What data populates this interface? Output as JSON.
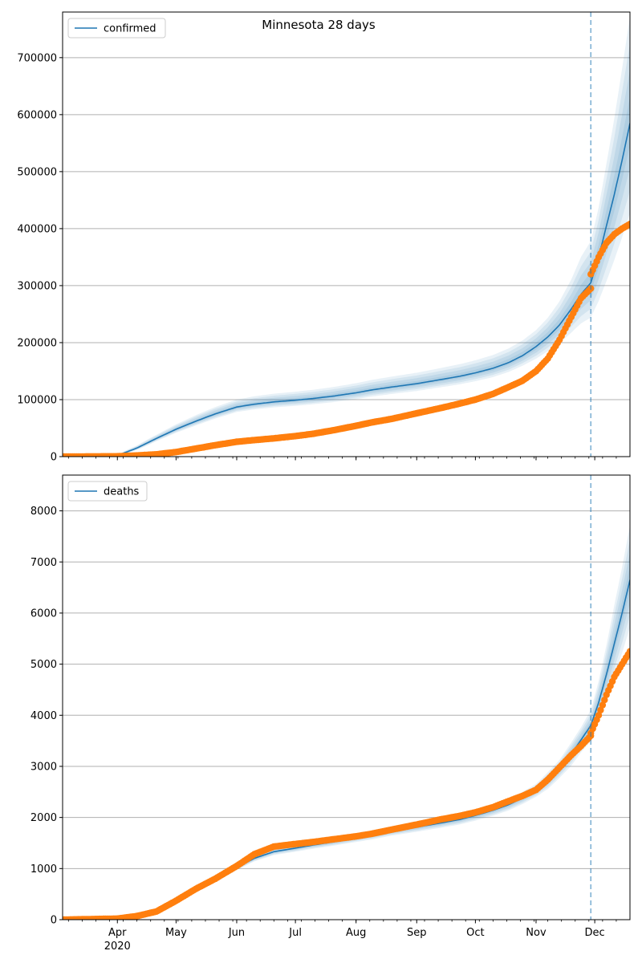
{
  "figure": {
    "title": "Minnesota 28 days"
  },
  "colors": {
    "model_line": "#1f77b4",
    "band": "#1f77b4",
    "observed": "#ff7f0e",
    "vline": "#1f77b4",
    "grid": "#b0b0b0"
  },
  "x_axis": {
    "month_ticks": [
      {
        "label": "Apr",
        "day": 20
      },
      {
        "label": "May",
        "day": 50
      },
      {
        "label": "Jun",
        "day": 81
      },
      {
        "label": "Jul",
        "day": 111
      },
      {
        "label": "Aug",
        "day": 142
      },
      {
        "label": "Sep",
        "day": 173
      },
      {
        "label": "Oct",
        "day": 203
      },
      {
        "label": "Nov",
        "day": 234
      },
      {
        "label": "Dec",
        "day": 264
      }
    ],
    "year_label": "2020",
    "range_days": [
      -8,
      282
    ],
    "forecast_start_day": 262
  },
  "chart_data": [
    {
      "type": "line",
      "legend": "confirmed",
      "legend_position": "upper-left",
      "grid": "horizontal",
      "ylim": [
        0,
        780000
      ],
      "yticks": [
        0,
        100000,
        200000,
        300000,
        400000,
        500000,
        600000,
        700000
      ],
      "ytick_labels": [
        "0",
        "100000",
        "200000",
        "300000",
        "400000",
        "500000",
        "600000",
        "700000"
      ],
      "model": {
        "days": [
          -8,
          20,
          30,
          40,
          50,
          60,
          70,
          81,
          90,
          100,
          111,
          120,
          130,
          142,
          150,
          160,
          173,
          185,
          195,
          203,
          212,
          220,
          227,
          234,
          240,
          246,
          252,
          257,
          262,
          266,
          270,
          274,
          278,
          282
        ],
        "values": [
          0,
          2000,
          15000,
          32000,
          48000,
          62000,
          75000,
          87000,
          92000,
          96000,
          99000,
          102000,
          106000,
          112000,
          117000,
          122000,
          128000,
          135000,
          141000,
          147000,
          155000,
          165000,
          177000,
          193000,
          210000,
          231000,
          259000,
          285000,
          305000,
          350000,
          405000,
          460000,
          520000,
          585000
        ],
        "band_upper_fraction": [
          0.0,
          0.5,
          0.3,
          0.2,
          0.18,
          0.17,
          0.16,
          0.15,
          0.15,
          0.15,
          0.15,
          0.15,
          0.15,
          0.15,
          0.15,
          0.15,
          0.15,
          0.15,
          0.15,
          0.15,
          0.15,
          0.15,
          0.15,
          0.15,
          0.16,
          0.18,
          0.2,
          0.23,
          0.24,
          0.25,
          0.27,
          0.29,
          0.31,
          0.32
        ],
        "band_lower_fraction": [
          0.0,
          0.4,
          0.22,
          0.15,
          0.13,
          0.12,
          0.11,
          0.1,
          0.1,
          0.1,
          0.1,
          0.1,
          0.1,
          0.1,
          0.1,
          0.1,
          0.1,
          0.1,
          0.1,
          0.1,
          0.1,
          0.1,
          0.1,
          0.11,
          0.12,
          0.14,
          0.16,
          0.18,
          0.2,
          0.22,
          0.24,
          0.25,
          0.26,
          0.27
        ]
      },
      "observed": {
        "days": [
          -8,
          20,
          30,
          40,
          50,
          60,
          70,
          81,
          90,
          100,
          111,
          120,
          130,
          142,
          150,
          160,
          173,
          185,
          195,
          203,
          212,
          220,
          227,
          234,
          240,
          246,
          252,
          257,
          262
        ],
        "values": [
          0,
          500,
          2000,
          4000,
          8000,
          14000,
          20000,
          26000,
          29000,
          32000,
          36000,
          40000,
          46000,
          54000,
          60000,
          66000,
          76000,
          85000,
          93000,
          100000,
          110000,
          122000,
          133000,
          150000,
          172000,
          205000,
          245000,
          278000,
          295000
        ],
        "forecast_days": [
          262,
          266,
          270,
          274,
          278,
          282
        ],
        "forecast_values": [
          320000,
          350000,
          375000,
          390000,
          400000,
          408000
        ]
      }
    },
    {
      "type": "line",
      "legend": "deaths",
      "legend_position": "upper-left",
      "grid": "horizontal",
      "ylim": [
        0,
        8700
      ],
      "yticks": [
        0,
        1000,
        2000,
        3000,
        4000,
        5000,
        6000,
        7000,
        8000
      ],
      "ytick_labels": [
        "0",
        "1000",
        "2000",
        "3000",
        "4000",
        "5000",
        "6000",
        "7000",
        "8000"
      ],
      "model": {
        "days": [
          -8,
          20,
          30,
          40,
          50,
          60,
          70,
          81,
          90,
          100,
          111,
          120,
          130,
          142,
          150,
          160,
          173,
          185,
          195,
          203,
          212,
          220,
          227,
          234,
          240,
          246,
          252,
          257,
          262,
          266,
          270,
          274,
          278,
          282
        ],
        "values": [
          0,
          20,
          60,
          150,
          350,
          570,
          780,
          1020,
          1200,
          1330,
          1400,
          1460,
          1520,
          1600,
          1650,
          1730,
          1810,
          1890,
          1960,
          2040,
          2140,
          2250,
          2380,
          2530,
          2720,
          2950,
          3240,
          3520,
          3800,
          4250,
          4800,
          5400,
          6000,
          6650
        ],
        "band_upper_fraction": [
          0.0,
          0.2,
          0.15,
          0.1,
          0.08,
          0.07,
          0.06,
          0.05,
          0.05,
          0.05,
          0.05,
          0.05,
          0.05,
          0.05,
          0.05,
          0.05,
          0.05,
          0.05,
          0.05,
          0.05,
          0.05,
          0.05,
          0.05,
          0.05,
          0.06,
          0.06,
          0.07,
          0.07,
          0.08,
          0.1,
          0.12,
          0.14,
          0.15,
          0.16
        ],
        "band_lower_fraction": [
          0.0,
          0.2,
          0.15,
          0.1,
          0.08,
          0.07,
          0.06,
          0.05,
          0.05,
          0.05,
          0.05,
          0.05,
          0.05,
          0.05,
          0.05,
          0.05,
          0.05,
          0.05,
          0.05,
          0.05,
          0.05,
          0.05,
          0.05,
          0.05,
          0.06,
          0.06,
          0.07,
          0.07,
          0.08,
          0.09,
          0.11,
          0.12,
          0.13,
          0.14
        ]
      },
      "observed": {
        "days": [
          -8,
          20,
          30,
          40,
          50,
          60,
          70,
          81,
          90,
          100,
          111,
          120,
          130,
          142,
          150,
          160,
          173,
          185,
          195,
          203,
          212,
          220,
          227,
          234,
          240,
          246,
          252,
          257,
          262
        ],
        "values": [
          0,
          20,
          70,
          160,
          370,
          600,
          800,
          1050,
          1280,
          1430,
          1480,
          1520,
          1570,
          1630,
          1680,
          1760,
          1860,
          1960,
          2030,
          2100,
          2200,
          2320,
          2420,
          2540,
          2740,
          2980,
          3220,
          3400,
          3600
        ],
        "forecast_days": [
          262,
          266,
          270,
          274,
          278,
          282
        ],
        "forecast_values": [
          3650,
          4000,
          4400,
          4750,
          5000,
          5250
        ]
      }
    }
  ]
}
